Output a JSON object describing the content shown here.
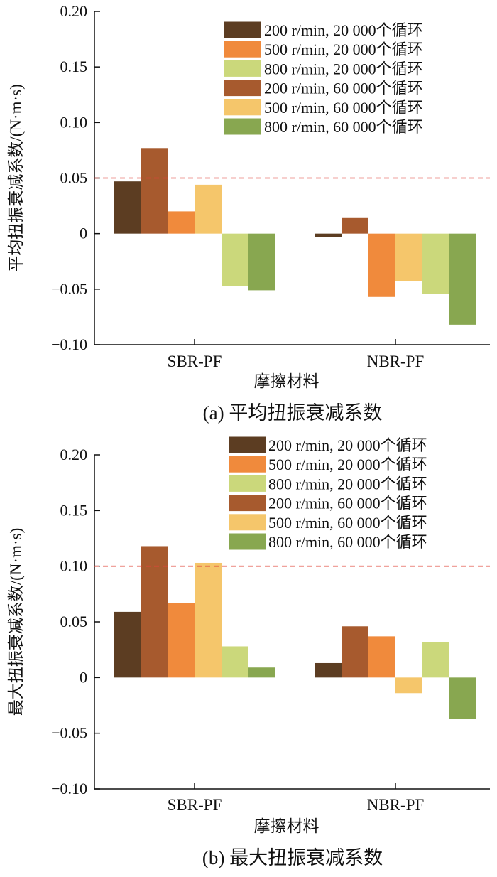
{
  "chart_data": [
    {
      "type": "bar",
      "caption": "(a)  平均扭振衰减系数",
      "xlabel": "摩擦材料",
      "ylabel": "平均扭振衰减系数/(N·m·s)",
      "ylim": [
        -0.1,
        0.2
      ],
      "yticks": [
        -0.1,
        -0.05,
        0,
        0.05,
        0.1,
        0.15,
        0.2
      ],
      "ytick_labels": [
        "−0.10",
        "−0.05",
        "0",
        "0.05",
        "0.10",
        "0.15",
        "0.20"
      ],
      "reference_line": 0.05,
      "legend_position": "top-right",
      "categories": [
        "SBR-PF",
        "NBR-PF"
      ],
      "bar_order": [
        0,
        3,
        1,
        4,
        2,
        5
      ],
      "series": [
        {
          "name": "200 r/min, 20 000个循环",
          "color": "#5c3d22",
          "values": [
            0.047,
            -0.003
          ]
        },
        {
          "name": "500 r/min, 20 000个循环",
          "color": "#f08a3c",
          "values": [
            0.02,
            -0.057
          ]
        },
        {
          "name": "800 r/min, 20 000个循环",
          "color": "#cbd87b",
          "values": [
            -0.047,
            -0.054
          ]
        },
        {
          "name": "200 r/min, 60 000个循环",
          "color": "#a75a2e",
          "values": [
            0.077,
            0.014
          ]
        },
        {
          "name": "500 r/min, 60 000个循环",
          "color": "#f5c66b",
          "values": [
            0.044,
            -0.043
          ]
        },
        {
          "name": "800 r/min, 60 000个循环",
          "color": "#88a750",
          "values": [
            -0.051,
            -0.082
          ]
        }
      ]
    },
    {
      "type": "bar",
      "caption": "(b)  最大扭振衰减系数",
      "xlabel": "摩擦材料",
      "ylabel": "最大扭振衰减系数/(N·m·s)",
      "ylim": [
        -0.1,
        0.2
      ],
      "yticks": [
        -0.1,
        -0.05,
        0,
        0.05,
        0.1,
        0.15,
        0.2
      ],
      "ytick_labels": [
        "−0.10",
        "−0.05",
        "0",
        "0.05",
        "0.10",
        "0.15",
        "0.20"
      ],
      "reference_line": 0.1,
      "legend_position": "top-right",
      "categories": [
        "SBR-PF",
        "NBR-PF"
      ],
      "bar_order": [
        0,
        3,
        1,
        4,
        2,
        5
      ],
      "series": [
        {
          "name": "200 r/min, 20 000个循环",
          "color": "#5c3d22",
          "values": [
            0.059,
            0.013
          ]
        },
        {
          "name": "500 r/min, 20 000个循环",
          "color": "#f08a3c",
          "values": [
            0.067,
            0.037
          ]
        },
        {
          "name": "800 r/min, 20 000个循环",
          "color": "#cbd87b",
          "values": [
            0.028,
            0.032
          ]
        },
        {
          "name": "200 r/min, 60 000个循环",
          "color": "#a75a2e",
          "values": [
            0.118,
            0.046
          ]
        },
        {
          "name": "500 r/min, 60 000个循环",
          "color": "#f5c66b",
          "values": [
            0.103,
            -0.014
          ]
        },
        {
          "name": "800 r/min, 60 000个循环",
          "color": "#88a750",
          "values": [
            0.009,
            -0.037
          ]
        }
      ]
    }
  ]
}
